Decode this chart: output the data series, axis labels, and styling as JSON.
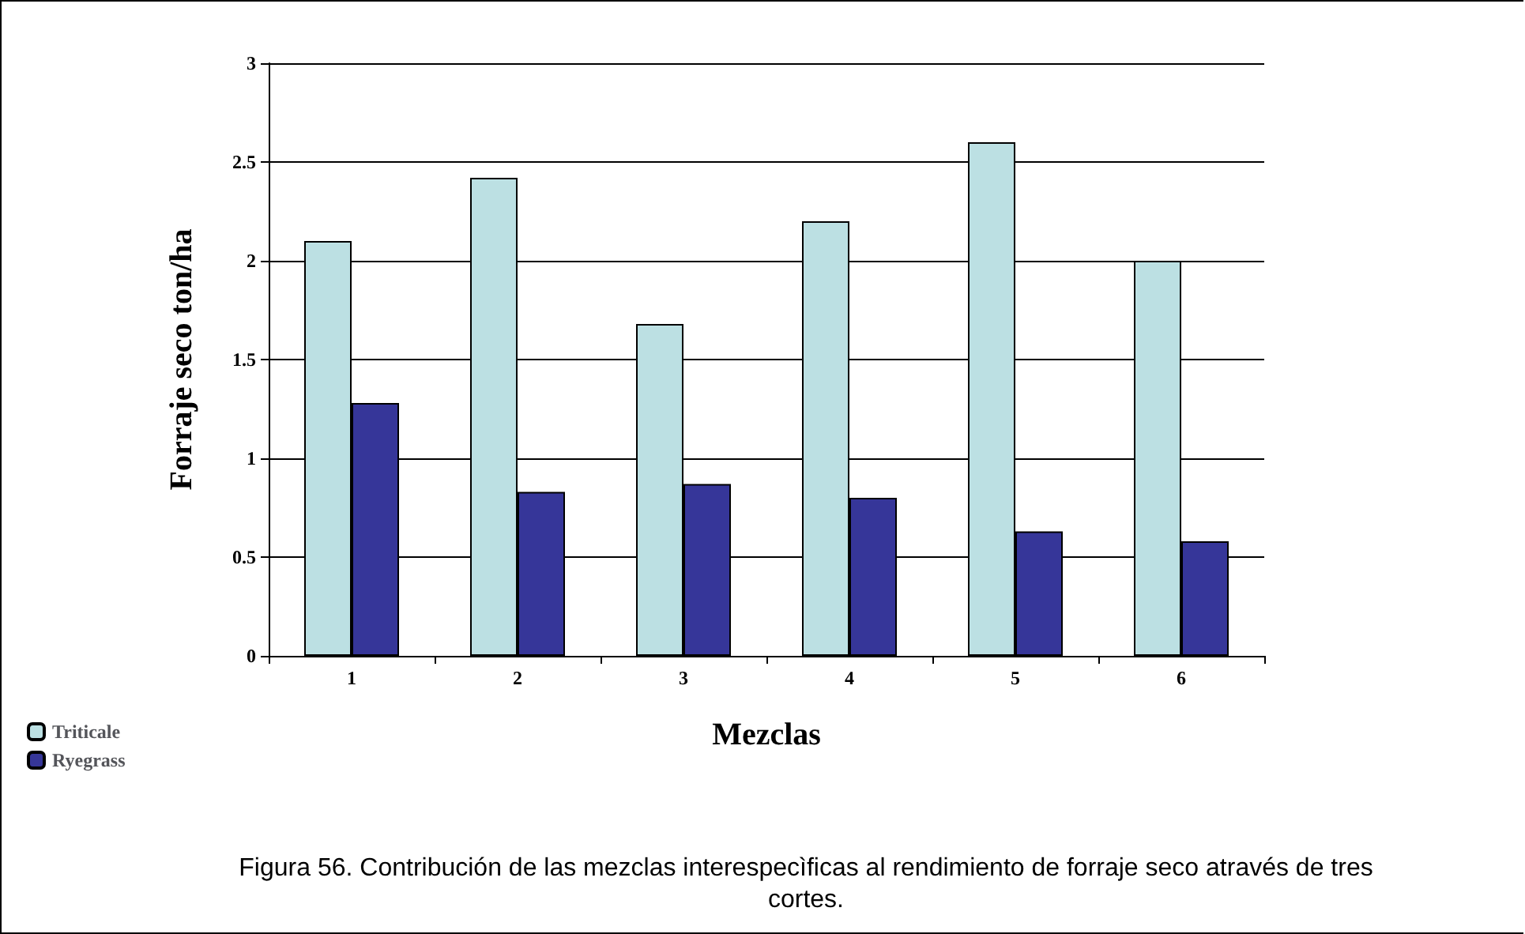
{
  "chart_data": {
    "type": "bar",
    "categories": [
      "1",
      "2",
      "3",
      "4",
      "5",
      "6"
    ],
    "series": [
      {
        "name": "Triticale",
        "color": "#bce0e3",
        "values": [
          2.1,
          2.42,
          1.68,
          2.2,
          2.6,
          2.0
        ]
      },
      {
        "name": "Ryegrass",
        "color": "#363699",
        "values": [
          1.28,
          0.83,
          0.87,
          0.8,
          0.63,
          0.58
        ]
      }
    ],
    "xlabel": "Mezclas",
    "ylabel": "Forraje seco ton/ha",
    "ylim": [
      0,
      3
    ],
    "yticks": [
      0,
      0.5,
      1,
      1.5,
      2,
      2.5,
      3
    ],
    "grid": "y",
    "legend": "bottom left",
    "annotations": [
      "Figura 56. Contribución de las mezclas interespecìficas al rendimiento de forraje seco através de tres cortes."
    ]
  }
}
